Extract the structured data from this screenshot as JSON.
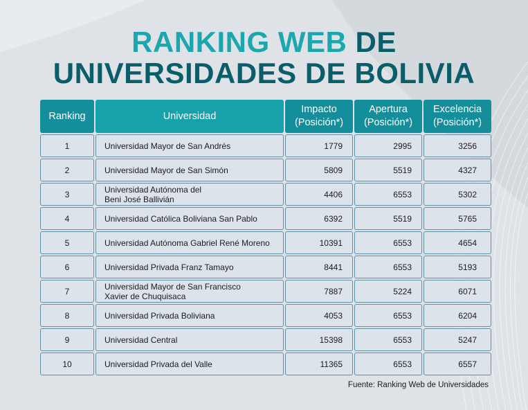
{
  "title": {
    "line1_teal": "RANKING WEB",
    "line1_dark": "DE",
    "line2": "UNIVERSIDADES DE BOLIVIA"
  },
  "chart_data": {
    "type": "table",
    "columns": [
      "Ranking",
      "Universidad",
      "Impacto (Posición*)",
      "Apertura (Posición*)",
      "Excelencia (Posición*)"
    ],
    "header": {
      "ranking": "Ranking",
      "universidad": "Universidad",
      "impacto_1": "Impacto",
      "impacto_2": "(Posición*)",
      "apertura_1": "Apertura",
      "apertura_2": "(Posición*)",
      "excelencia_1": "Excelencia",
      "excelencia_2": "(Posición*)"
    },
    "rows": [
      {
        "ranking": "1",
        "universidad": [
          "Universidad Mayor de San Andrés"
        ],
        "impacto": "1779",
        "apertura": "2995",
        "excelencia": "3256"
      },
      {
        "ranking": "2",
        "universidad": [
          "Universidad Mayor de San Simón"
        ],
        "impacto": "5809",
        "apertura": "5519",
        "excelencia": "4327"
      },
      {
        "ranking": "3",
        "universidad": [
          "Universidad Autónoma del",
          "Beni José Ballivián"
        ],
        "impacto": "4406",
        "apertura": "6553",
        "excelencia": "5302"
      },
      {
        "ranking": "4",
        "universidad": [
          "Universidad Católica Boliviana San Pablo"
        ],
        "impacto": "6392",
        "apertura": "5519",
        "excelencia": "5765"
      },
      {
        "ranking": "5",
        "universidad": [
          "Universidad Autónoma Gabriel René Moreno"
        ],
        "impacto": "10391",
        "apertura": "6553",
        "excelencia": "4654"
      },
      {
        "ranking": "6",
        "universidad": [
          "Universidad Privada Franz Tamayo"
        ],
        "impacto": "8441",
        "apertura": "6553",
        "excelencia": "5193"
      },
      {
        "ranking": "7",
        "universidad": [
          "Universidad Mayor de San Francisco",
          "Xavier de Chuquisaca"
        ],
        "impacto": "7887",
        "apertura": "5224",
        "excelencia": "6071"
      },
      {
        "ranking": "8",
        "universidad": [
          "Universidad Privada Boliviana"
        ],
        "impacto": "4053",
        "apertura": "6553",
        "excelencia": "6204"
      },
      {
        "ranking": "9",
        "universidad": [
          "Universidad Central"
        ],
        "impacto": "15398",
        "apertura": "6553",
        "excelencia": "5247"
      },
      {
        "ranking": "10",
        "universidad": [
          "Universidad Privada del Valle"
        ],
        "impacto": "11365",
        "apertura": "6553",
        "excelencia": "6557"
      }
    ]
  },
  "source": "Fuente: Ranking Web de Universidades",
  "colors": {
    "title_teal": "#1ba7ad",
    "title_dark": "#0a5e6a",
    "header_bg": "#138e9a",
    "cell_bg": "#dde3ea",
    "background": "#dfe3e7"
  }
}
